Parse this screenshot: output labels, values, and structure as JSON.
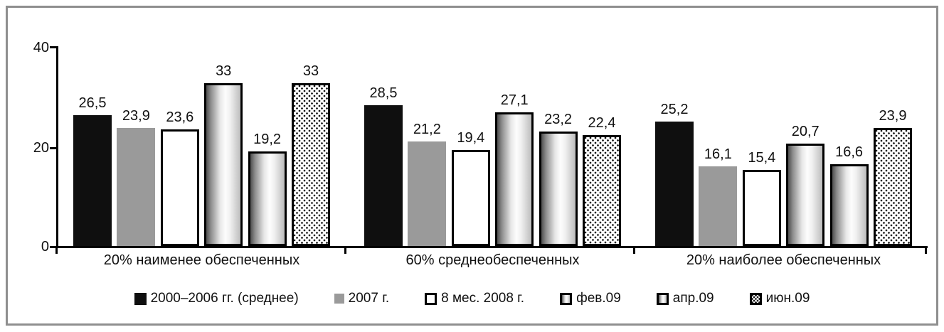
{
  "chart_data": {
    "type": "bar",
    "title": "",
    "categories": [
      "20% наименее обеспеченных",
      "60% среднеобеспеченных",
      "20% наиболее обеспеченных"
    ],
    "series": [
      {
        "name": "2000–2006 гг. (среднее)",
        "style": "solid-black",
        "values": [
          26.5,
          28.5,
          25.2
        ],
        "labels": [
          "26,5",
          "28,5",
          "25,2"
        ]
      },
      {
        "name": "2007 г.",
        "style": "solid-gray",
        "values": [
          23.9,
          21.2,
          16.1
        ],
        "labels": [
          "23,9",
          "21,2",
          "16,1"
        ]
      },
      {
        "name": "8 мес. 2008 г.",
        "style": "white-outline",
        "values": [
          23.6,
          19.4,
          15.4
        ],
        "labels": [
          "23,6",
          "19,4",
          "15,4"
        ]
      },
      {
        "name": "фев.09",
        "style": "cylinder-gradient",
        "values": [
          33.0,
          27.1,
          20.7
        ],
        "labels": [
          "33",
          "27,1",
          "20,7"
        ]
      },
      {
        "name": "апр.09",
        "style": "cylinder-gradient",
        "values": [
          19.2,
          23.2,
          16.6
        ],
        "labels": [
          "19,2",
          "23,2",
          "16,6"
        ]
      },
      {
        "name": "июн.09",
        "style": "dotted",
        "values": [
          33.0,
          22.4,
          23.9
        ],
        "labels": [
          "33",
          "22,4",
          "23,9"
        ]
      }
    ],
    "y_axis": {
      "min": 0,
      "max": 40,
      "ticks": [
        "0",
        "20",
        "40"
      ]
    },
    "grid": "off",
    "legend_position": "bottom",
    "colors": {
      "bar_black": "#0f0f0f",
      "bar_gray": "#9a9a9a",
      "bar_white": "#ffffff",
      "bar_outline": "#000000",
      "axis": "#000000",
      "frame_border": "#8f8f8f",
      "text": "#111111"
    }
  }
}
